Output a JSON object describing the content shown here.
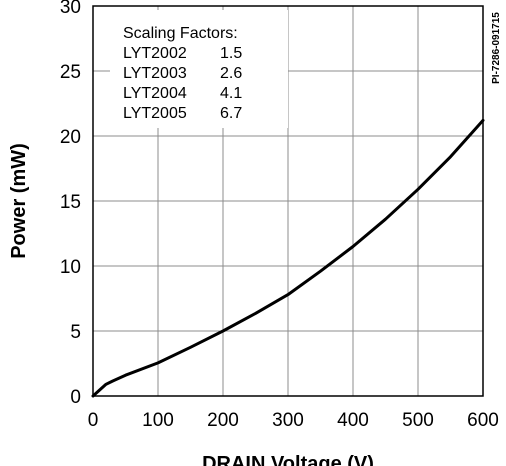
{
  "chart_data": {
    "type": "line",
    "title": "",
    "xlabel": "DRAIN Voltage (V)",
    "ylabel": "Power (mW)",
    "xlim": [
      0,
      600
    ],
    "ylim": [
      0,
      30
    ],
    "xticks": [
      0,
      100,
      200,
      300,
      400,
      500,
      600
    ],
    "yticks": [
      0,
      5,
      10,
      15,
      20,
      25,
      30
    ],
    "grid": true,
    "series": [
      {
        "x": [
          0,
          10,
          20,
          30,
          50,
          100,
          150,
          200,
          250,
          300,
          350,
          400,
          450,
          500,
          550,
          600
        ],
        "y": [
          0,
          0.45,
          0.9,
          1.15,
          1.6,
          2.55,
          3.75,
          5.0,
          6.35,
          7.8,
          9.6,
          11.5,
          13.6,
          15.9,
          18.4,
          21.2
        ]
      }
    ],
    "annotations": {
      "scaling_title": "Scaling Factors:",
      "scaling_factors": [
        {
          "part": "LYT2002",
          "factor": "1.5"
        },
        {
          "part": "LYT2003",
          "factor": "2.6"
        },
        {
          "part": "LYT2004",
          "factor": "4.1"
        },
        {
          "part": "LYT2005",
          "factor": "6.7"
        }
      ],
      "figure_id": "PI-7286-091715"
    },
    "colors": {
      "line": "#000000",
      "grid": "#8c8c8c",
      "background": "#ffffff"
    }
  }
}
